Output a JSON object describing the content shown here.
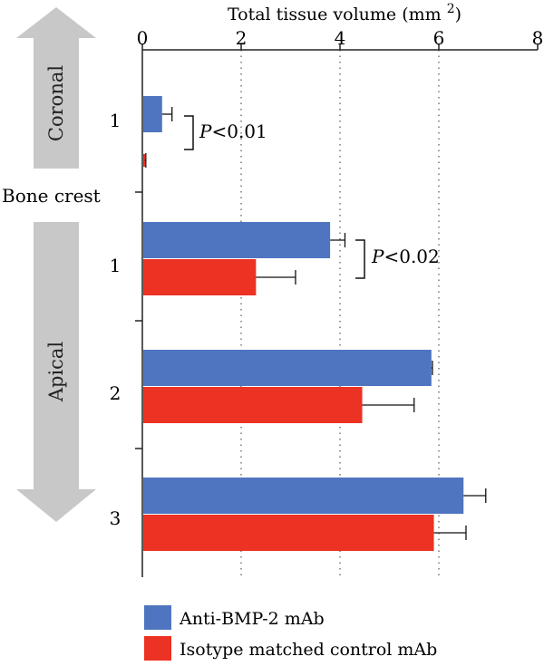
{
  "chart_data": {
    "type": "bar",
    "orientation": "horizontal",
    "xlabel": "Total tissue volume (mm",
    "xlabel_superscript": "2",
    "xlabel_close": ")",
    "xlim": [
      0,
      8
    ],
    "xticks": [
      "0",
      "2",
      "4",
      "6",
      "8"
    ],
    "grid": "dotted vertical",
    "regions": {
      "upper_label": "Coronal",
      "divider_label": "Bone crest",
      "lower_label": "Apical"
    },
    "groups": [
      {
        "region": "Coronal",
        "label": "1",
        "values": [
          0.4,
          0.05
        ],
        "errors": [
          0.2,
          0.02
        ]
      },
      {
        "region": "Apical",
        "label": "1",
        "values": [
          3.8,
          2.3
        ],
        "errors": [
          0.3,
          0.8
        ]
      },
      {
        "region": "Apical",
        "label": "2",
        "values": [
          5.85,
          4.45
        ],
        "errors": [
          0.02,
          1.05
        ]
      },
      {
        "region": "Apical",
        "label": "3",
        "values": [
          6.5,
          5.9
        ],
        "errors": [
          0.45,
          0.65
        ]
      }
    ],
    "series": [
      {
        "name": "Anti-BMP-2 mAb",
        "color": "#4f75c0"
      },
      {
        "name": "Isotype matched control mAb",
        "color": "#ec3223"
      }
    ],
    "annotations": [
      {
        "text_italic": "P",
        "text": "<0.01",
        "group": 0
      },
      {
        "text_italic": "P",
        "text": "<0.02",
        "group": 1
      }
    ],
    "legend_position": "bottom"
  }
}
